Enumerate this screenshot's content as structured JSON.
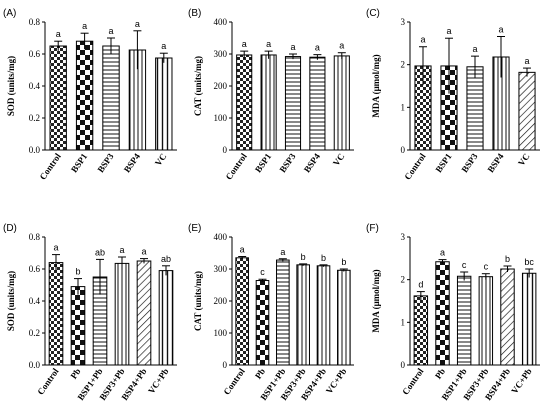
{
  "chart_data": [
    {
      "panel": "(A)",
      "type": "bar",
      "ylabel": "SOD (units/mg)",
      "ylim": [
        0,
        0.8
      ],
      "yticks": [
        "0.0",
        "0.2",
        "0.4",
        "0.6",
        "0.8"
      ],
      "categories": [
        "Control",
        "BSP1",
        "BSP3",
        "BSP4",
        "VC"
      ],
      "values": [
        0.65,
        0.68,
        0.65,
        0.625,
        0.575
      ],
      "errors": [
        0.03,
        0.05,
        0.05,
        0.12,
        0.03
      ],
      "letters": [
        "a",
        "a",
        "a",
        "a",
        "a"
      ],
      "patterns": [
        "checker-small",
        "checker-large",
        "hlines",
        "vlines",
        "vlines-wide"
      ]
    },
    {
      "panel": "(B)",
      "type": "bar",
      "ylabel": "CAT (units/mg)",
      "ylim": [
        0,
        400
      ],
      "yticks": [
        "0",
        "100",
        "200",
        "300",
        "400"
      ],
      "categories": [
        "Control",
        "BSP1",
        "BSP3",
        "BSP4",
        "VC"
      ],
      "values": [
        297,
        297,
        292,
        290,
        294
      ],
      "errors": [
        12,
        12,
        8,
        8,
        10
      ],
      "letters": [
        "a",
        "a",
        "a",
        "a",
        "a"
      ],
      "patterns": [
        "checker-small",
        "vlines",
        "hlines",
        "hlines",
        "vlines"
      ]
    },
    {
      "panel": "(C)",
      "type": "bar",
      "ylabel": "MDA (μmol/mg)",
      "ylim": [
        0,
        3
      ],
      "yticks": [
        "0",
        "1",
        "2",
        "3"
      ],
      "categories": [
        "Control",
        "BSP1",
        "BSP3",
        "BSP4",
        "VC"
      ],
      "values": [
        1.97,
        1.97,
        1.95,
        2.18,
        1.82
      ],
      "errors": [
        0.45,
        0.65,
        0.25,
        0.48,
        0.1
      ],
      "letters": [
        "a",
        "a",
        "a",
        "a",
        "a"
      ],
      "patterns": [
        "checker-small",
        "checker-large",
        "hlines",
        "vlines",
        "diag"
      ]
    },
    {
      "panel": "(D)",
      "type": "bar",
      "ylabel": "SOD (units/mg)",
      "ylim": [
        0,
        0.8
      ],
      "yticks": [
        "0.0",
        "0.2",
        "0.4",
        "0.6",
        "0.8"
      ],
      "categories": [
        "Control",
        "Pb",
        "BSP1+Pb",
        "BSP3+Pb",
        "BSP4+Pb",
        "VC+Pb"
      ],
      "values": [
        0.64,
        0.49,
        0.55,
        0.635,
        0.65,
        0.59
      ],
      "errors": [
        0.05,
        0.05,
        0.11,
        0.04,
        0.015,
        0.03
      ],
      "letters": [
        "a",
        "b",
        "ab",
        "a",
        "a",
        "ab"
      ],
      "patterns": [
        "checker-small",
        "checker-large",
        "hlines",
        "vlines",
        "diag",
        "vlines-wide"
      ]
    },
    {
      "panel": "(E)",
      "type": "bar",
      "ylabel": "CAT (units/mg)",
      "ylim": [
        0,
        400
      ],
      "yticks": [
        "0",
        "100",
        "200",
        "300",
        "400"
      ],
      "categories": [
        "Control",
        "Pb",
        "BSP1+Pb",
        "BSP3+Pb",
        "BSP4+Pb",
        "VC+Pb"
      ],
      "values": [
        335,
        264,
        328,
        313,
        310,
        296
      ],
      "errors": [
        4,
        4,
        4,
        3,
        3,
        4
      ],
      "letters": [
        "a",
        "c",
        "a",
        "b",
        "b",
        "b"
      ],
      "patterns": [
        "checker-small",
        "checker-large",
        "hlines",
        "vlines",
        "vlines",
        "vlines"
      ]
    },
    {
      "panel": "(F)",
      "type": "bar",
      "ylabel": "MDA (μmol/mg)",
      "ylim": [
        0,
        3
      ],
      "yticks": [
        "0",
        "1",
        "2",
        "3"
      ],
      "categories": [
        "Control",
        "Pb",
        "BSP1+Pb",
        "BSP3+Pb",
        "BSP4+Pb",
        "VC+Pb"
      ],
      "values": [
        1.62,
        2.42,
        2.08,
        2.07,
        2.25,
        2.15
      ],
      "errors": [
        0.1,
        0.05,
        0.1,
        0.07,
        0.07,
        0.1
      ],
      "letters": [
        "d",
        "a",
        "c",
        "c",
        "b",
        "bc"
      ],
      "patterns": [
        "checker-small",
        "checker-large",
        "hlines",
        "vlines",
        "diag",
        "vlines-wide"
      ]
    }
  ]
}
